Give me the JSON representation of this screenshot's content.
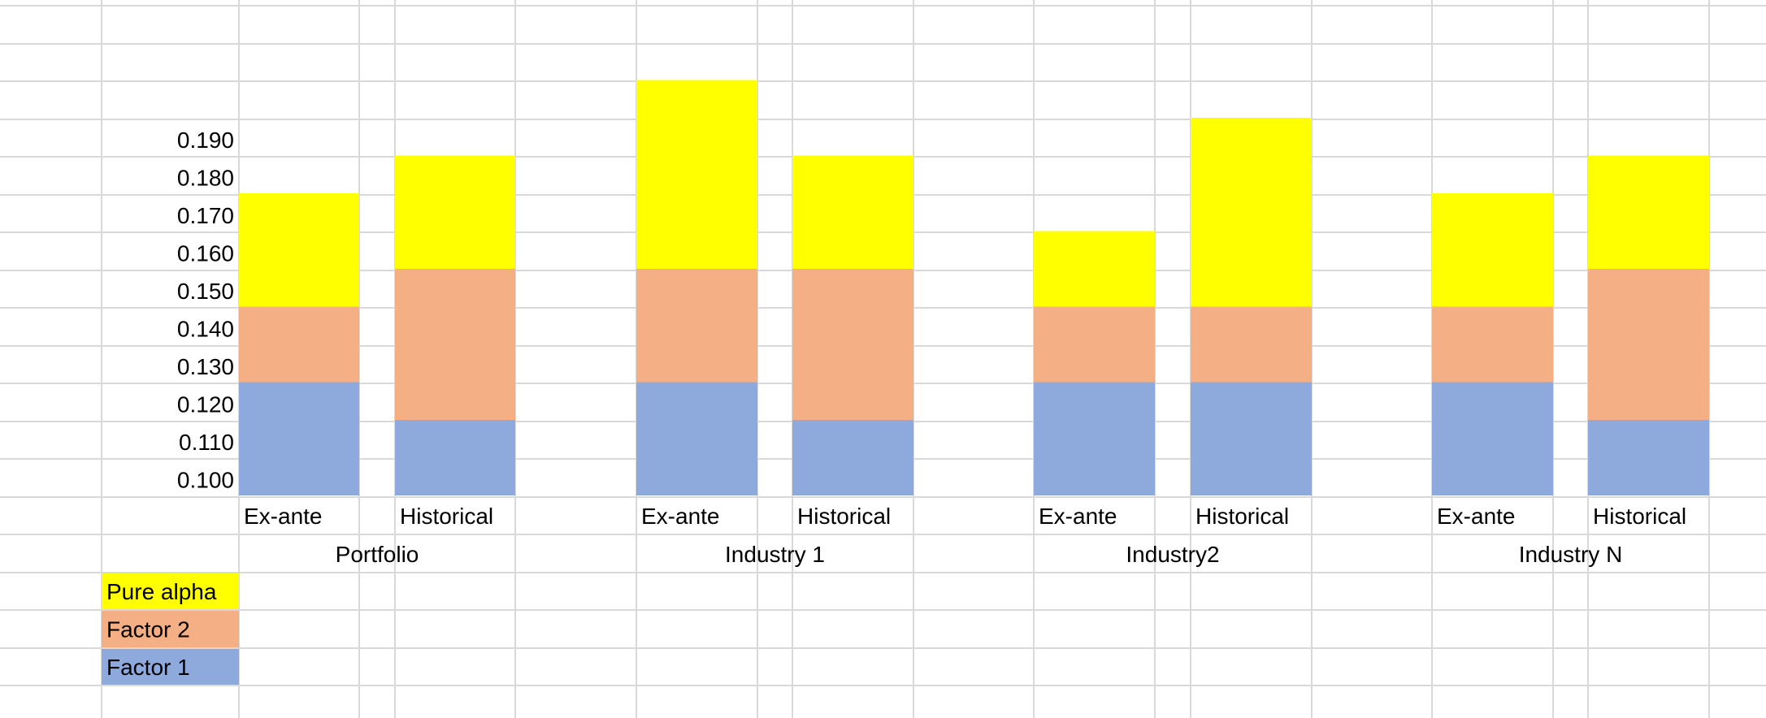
{
  "colors": {
    "factor1": "#8EA9DB",
    "factor2": "#F4B084",
    "pure_alpha": "#FFFF00",
    "gridline": "#D9D9D9",
    "text": "#000000"
  },
  "chart_data": {
    "type": "bar",
    "stacked": true,
    "y_tick_labels": [
      "0.190",
      "0.180",
      "0.170",
      "0.160",
      "0.150",
      "0.140",
      "0.130",
      "0.120",
      "0.110",
      "0.100"
    ],
    "ylim": [
      0.095,
      0.205
    ],
    "groups": [
      {
        "name": "Portfolio",
        "bars": [
          {
            "label": "Ex-ante",
            "factor1": 0.125,
            "factor2": 0.145,
            "pure_alpha": 0.175
          },
          {
            "label": "Historical",
            "factor1": 0.115,
            "factor2": 0.155,
            "pure_alpha": 0.185
          }
        ]
      },
      {
        "name": "Industry 1",
        "bars": [
          {
            "label": "Ex-ante",
            "factor1": 0.125,
            "factor2": 0.155,
            "pure_alpha": 0.205
          },
          {
            "label": "Historical",
            "factor1": 0.115,
            "factor2": 0.155,
            "pure_alpha": 0.185
          }
        ]
      },
      {
        "name": "Industry2",
        "bars": [
          {
            "label": "Ex-ante",
            "factor1": 0.125,
            "factor2": 0.145,
            "pure_alpha": 0.165
          },
          {
            "label": "Historical",
            "factor1": 0.125,
            "factor2": 0.145,
            "pure_alpha": 0.195
          }
        ]
      },
      {
        "name": "Industry N",
        "bars": [
          {
            "label": "Ex-ante",
            "factor1": 0.125,
            "factor2": 0.145,
            "pure_alpha": 0.175
          },
          {
            "label": "Historical",
            "factor1": 0.115,
            "factor2": 0.155,
            "pure_alpha": 0.185
          }
        ]
      }
    ],
    "legend": [
      {
        "key": "pure_alpha",
        "label": "Pure alpha"
      },
      {
        "key": "factor2",
        "label": "Factor 2"
      },
      {
        "key": "factor1",
        "label": "Factor 1"
      }
    ],
    "legend_position": "bottom-left",
    "grid": true
  }
}
